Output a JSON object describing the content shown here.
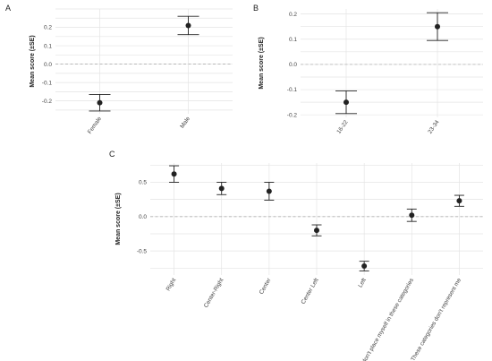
{
  "chart_data": [
    {
      "panel": "A",
      "type": "scatter",
      "ylabel": "Mean score (±SE)",
      "categories": [
        "Female",
        "Male"
      ],
      "values": [
        -0.21,
        0.21
      ],
      "se_low": [
        -0.255,
        0.16
      ],
      "se_high": [
        -0.165,
        0.26
      ],
      "yticks": [
        -0.2,
        -0.1,
        0.0,
        0.1,
        0.2
      ],
      "ytick_labels": [
        "-0.2",
        "-0.1",
        "0.0",
        "0.1",
        "0.2"
      ],
      "ylim": [
        -0.27,
        0.3
      ]
    },
    {
      "panel": "B",
      "type": "scatter",
      "ylabel": "Mean score (±SE)",
      "categories": [
        "16-22",
        "23-34"
      ],
      "values": [
        -0.15,
        0.15
      ],
      "se_low": [
        -0.195,
        0.095
      ],
      "se_high": [
        -0.105,
        0.205
      ],
      "yticks": [
        -0.2,
        -0.1,
        0.0,
        0.1,
        0.2
      ],
      "ytick_labels": [
        "-0.2",
        "-0.1",
        "0.0",
        "0.1",
        "0.2"
      ],
      "ylim": [
        -0.21,
        0.22
      ]
    },
    {
      "panel": "C",
      "type": "scatter",
      "ylabel": "Mean score (±SE)",
      "categories": [
        "Right",
        "Center-Right",
        "Center",
        "Center Left",
        "Left",
        "I don't place myself in these categories",
        "These categories don't represent me"
      ],
      "values": [
        0.62,
        0.41,
        0.37,
        -0.2,
        -0.72,
        0.02,
        0.23
      ],
      "se_low": [
        0.5,
        0.32,
        0.24,
        -0.28,
        -0.79,
        -0.07,
        0.15
      ],
      "se_high": [
        0.74,
        0.5,
        0.5,
        -0.12,
        -0.65,
        0.11,
        0.31
      ],
      "yticks": [
        -0.5,
        0.0,
        0.5
      ],
      "ytick_labels": [
        "-0.5",
        "0.0",
        "0.5"
      ],
      "ylim": [
        -0.85,
        0.78
      ]
    }
  ]
}
